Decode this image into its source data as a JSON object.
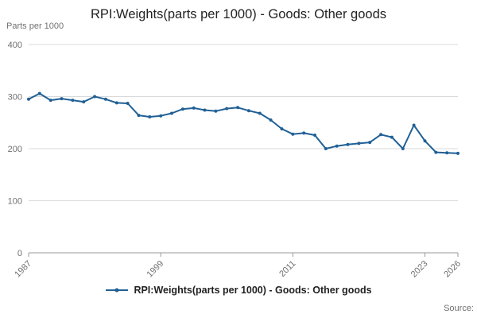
{
  "title": "RPI:Weights(parts per 1000) - Goods: Other goods",
  "unit_label": "Parts per 1000",
  "legend": {
    "label": "RPI:Weights(parts per 1000) - Goods: Other goods"
  },
  "source_label": "Source:",
  "colors": {
    "line": "#206095",
    "grid": "#d9d9d9",
    "axis": "#999999",
    "tick_text": "#707071"
  },
  "chart_data": {
    "type": "line",
    "title": "RPI:Weights(parts per 1000) - Goods: Other goods",
    "xlabel": "",
    "ylabel": "Parts per 1000",
    "ylim": [
      0,
      400
    ],
    "yticks": [
      0,
      100,
      200,
      300,
      400
    ],
    "xticks": [
      1987,
      1999,
      2011,
      2023,
      2026
    ],
    "grid": true,
    "legend_position": "bottom",
    "x": [
      1987,
      1988,
      1989,
      1990,
      1991,
      1992,
      1993,
      1994,
      1995,
      1996,
      1997,
      1998,
      1999,
      2000,
      2001,
      2002,
      2003,
      2004,
      2005,
      2006,
      2007,
      2008,
      2009,
      2010,
      2011,
      2012,
      2013,
      2014,
      2015,
      2016,
      2017,
      2018,
      2019,
      2020,
      2021,
      2022,
      2023,
      2024,
      2025,
      2026
    ],
    "values": [
      295,
      306,
      293,
      296,
      293,
      290,
      300,
      295,
      288,
      287,
      264,
      261,
      263,
      268,
      276,
      278,
      274,
      272,
      277,
      279,
      273,
      268,
      255,
      238,
      228,
      230,
      226,
      200,
      205,
      208,
      210,
      212,
      227,
      222,
      200,
      245,
      215,
      193,
      192,
      191
    ]
  }
}
